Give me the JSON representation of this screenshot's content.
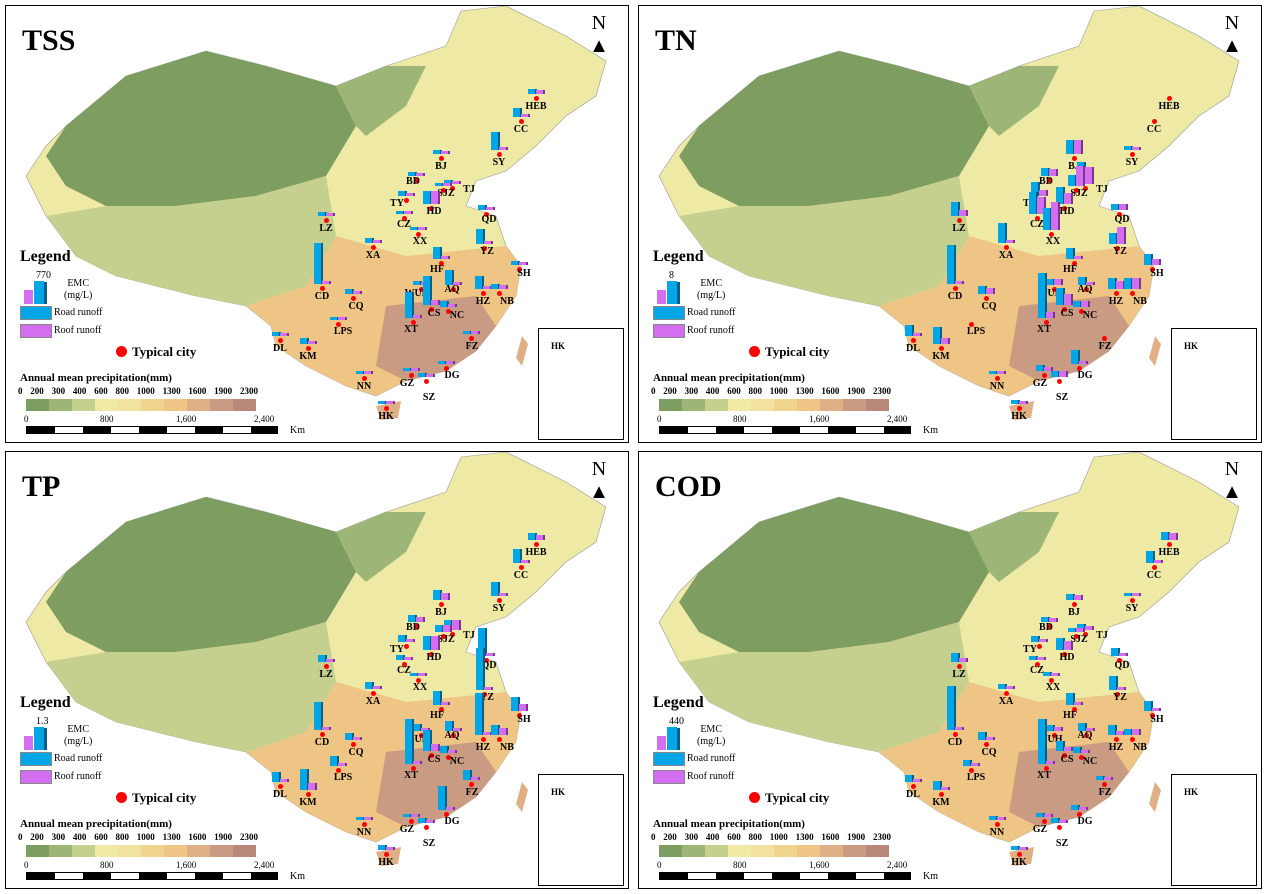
{
  "legend": {
    "title": "Legend",
    "emc": "EMC",
    "emc_unit": "(mg/L)",
    "road": "Road runoff",
    "roof": "Roof  runoff",
    "typical": "Typical city",
    "precip_title": "Annual mean precipitation(mm)",
    "precip_ticks": [
      "0",
      "200",
      "300",
      "400",
      "600",
      "800",
      "1000",
      "1300",
      "1600",
      "1900",
      "2300"
    ],
    "precip_colors": [
      "#7d9d61",
      "#9db577",
      "#c5d08f",
      "#eeeaa6",
      "#f2e2a0",
      "#f1d58f",
      "#eec584",
      "#dfb085",
      "#c99b82",
      "#b88878"
    ],
    "scale_ticks": [
      "0",
      "800",
      "1,600",
      "2,400"
    ],
    "scale_unit": "Km",
    "north": "N",
    "inset_label": "HK",
    "road_color": "#00a6e6",
    "roof_color": "#d46ef0"
  },
  "panels": [
    {
      "title": "TSS",
      "legend_max": "770",
      "max": 770,
      "bars": {
        "HEB": [
          80,
          60
        ],
        "CC": [
          150,
          20
        ],
        "SY": [
          300,
          30
        ],
        "BJ": [
          60,
          40
        ],
        "BD": [
          60,
          40
        ],
        "TJ": [
          70,
          50
        ],
        "SJZ": [
          30,
          40
        ],
        "TY": [
          90,
          20
        ],
        "CZ": [
          50,
          20
        ],
        "HD": [
          220,
          220
        ],
        "QD": [
          80,
          20
        ],
        "XX": [
          40,
          30
        ],
        "LZ": [
          60,
          20
        ],
        "XA": [
          90,
          10
        ],
        "YZ": [
          260,
          30
        ],
        "HF": [
          200,
          20
        ],
        "WUH": [
          60,
          40
        ],
        "AQ": [
          250,
          20
        ],
        "HZ": [
          230,
          20
        ],
        "NB": [
          80,
          60
        ],
        "SH": [
          60,
          40
        ],
        "CS": [
          500,
          80
        ],
        "NC": [
          100,
          30
        ],
        "XT": [
          450,
          20
        ],
        "CD": [
          700,
          10
        ],
        "CQ": [
          90,
          20
        ],
        "DL": [
          70,
          30
        ],
        "KM": [
          110,
          40
        ],
        "LPS": [
          30,
          20
        ],
        "NN": [
          50,
          20
        ],
        "GZ": [
          40,
          20
        ],
        "SZ": [
          60,
          30
        ],
        "DG": [
          50,
          30
        ],
        "FZ": [
          40,
          20
        ],
        "HK": [
          50,
          30
        ]
      }
    },
    {
      "title": "TN",
      "legend_max": "8",
      "max": 8,
      "bars": {
        "HEB": [
          0,
          0
        ],
        "CC": [
          0,
          0
        ],
        "SY": [
          0.8,
          0.6
        ],
        "BJ": [
          2.5,
          2.5
        ],
        "BD": [
          1.5,
          1.2
        ],
        "TJ": [
          4,
          3
        ],
        "SJZ": [
          2,
          3.5
        ],
        "TY": [
          2.5,
          1
        ],
        "CZ": [
          4,
          3
        ],
        "HD": [
          3,
          2
        ],
        "QD": [
          1,
          1
        ],
        "XX": [
          4,
          5
        ],
        "LZ": [
          2.5,
          1
        ],
        "XA": [
          3.5,
          0.5
        ],
        "YZ": [
          2,
          3
        ],
        "HF": [
          2,
          0.5
        ],
        "WUH": [
          1,
          1
        ],
        "AQ": [
          1.5,
          0.5
        ],
        "HZ": [
          2,
          1.5
        ],
        "NB": [
          2,
          2
        ],
        "SH": [
          2,
          1
        ],
        "CS": [
          3,
          2
        ],
        "NC": [
          1,
          1
        ],
        "XT": [
          8,
          1
        ],
        "CD": [
          7,
          0.5
        ],
        "CQ": [
          1.5,
          1
        ],
        "DL": [
          2,
          0.5
        ],
        "KM": [
          3,
          1
        ],
        "LPS": [
          0,
          0
        ],
        "NN": [
          0.6,
          0.4
        ],
        "GZ": [
          1,
          0.8
        ],
        "SZ": [
          1,
          1
        ],
        "DG": [
          2.5,
          0.5
        ],
        "FZ": [
          0,
          0
        ],
        "HK": [
          0.8,
          0.6
        ]
      }
    },
    {
      "title": "TP",
      "legend_max": "1.3",
      "max": 1.3,
      "bars": {
        "HEB": [
          0.2,
          0.15
        ],
        "CC": [
          0.4,
          0.05
        ],
        "SY": [
          0.4,
          0.05
        ],
        "BJ": [
          0.3,
          0.2
        ],
        "BD": [
          0.2,
          0.15
        ],
        "TJ": [
          0.3,
          0.3
        ],
        "SJZ": [
          0.2,
          0.2
        ],
        "TY": [
          0.2,
          0.1
        ],
        "CZ": [
          0.15,
          0.1
        ],
        "HD": [
          0.4,
          0.4
        ],
        "QD": [
          0.8,
          0.05
        ],
        "XX": [
          0.1,
          0.05
        ],
        "LZ": [
          0.2,
          0.05
        ],
        "XA": [
          0.2,
          0.05
        ],
        "YZ": [
          1.2,
          0.1
        ],
        "HF": [
          0.4,
          0.1
        ],
        "WUH": [
          0.2,
          0.1
        ],
        "AQ": [
          0.3,
          0.1
        ],
        "HZ": [
          1.2,
          0.1
        ],
        "NB": [
          0.3,
          0.2
        ],
        "SH": [
          0.4,
          0.2
        ],
        "CS": [
          0.6,
          0.2
        ],
        "NC": [
          0.2,
          0.1
        ],
        "XT": [
          1.3,
          0.1
        ],
        "CD": [
          0.8,
          0.05
        ],
        "CQ": [
          0.2,
          0.1
        ],
        "DL": [
          0.3,
          0.1
        ],
        "KM": [
          0.6,
          0.2
        ],
        "LPS": [
          0.3,
          0.1
        ],
        "NN": [
          0.1,
          0.05
        ],
        "GZ": [
          0.1,
          0.05
        ],
        "SZ": [
          0.15,
          0.1
        ],
        "DG": [
          0.7,
          0.05
        ],
        "FZ": [
          0.3,
          0.1
        ],
        "HK": [
          0.15,
          0.1
        ]
      }
    },
    {
      "title": "COD",
      "legend_max": "440",
      "max": 440,
      "bars": {
        "HEB": [
          80,
          70
        ],
        "CC": [
          120,
          10
        ],
        "SY": [
          30,
          20
        ],
        "BJ": [
          60,
          50
        ],
        "BD": [
          50,
          40
        ],
        "TJ": [
          60,
          40
        ],
        "SJZ": [
          40,
          40
        ],
        "TY": [
          60,
          20
        ],
        "CZ": [
          40,
          20
        ],
        "HD": [
          120,
          90
        ],
        "QD": [
          80,
          10
        ],
        "XX": [
          40,
          30
        ],
        "LZ": [
          90,
          40
        ],
        "XA": [
          50,
          10
        ],
        "YZ": [
          140,
          30
        ],
        "HF": [
          120,
          20
        ],
        "WUH": [
          60,
          40
        ],
        "AQ": [
          80,
          20
        ],
        "HZ": [
          100,
          40
        ],
        "NB": [
          60,
          60
        ],
        "SH": [
          100,
          20
        ],
        "CS": [
          100,
          40
        ],
        "NC": [
          60,
          20
        ],
        "XT": [
          440,
          10
        ],
        "CD": [
          430,
          10
        ],
        "CQ": [
          80,
          20
        ],
        "DL": [
          70,
          20
        ],
        "KM": [
          90,
          30
        ],
        "LPS": [
          60,
          10
        ],
        "NN": [
          40,
          20
        ],
        "GZ": [
          40,
          20
        ],
        "SZ": [
          50,
          30
        ],
        "DG": [
          50,
          20
        ],
        "FZ": [
          40,
          20
        ],
        "HK": [
          40,
          30
        ]
      }
    }
  ]
}
